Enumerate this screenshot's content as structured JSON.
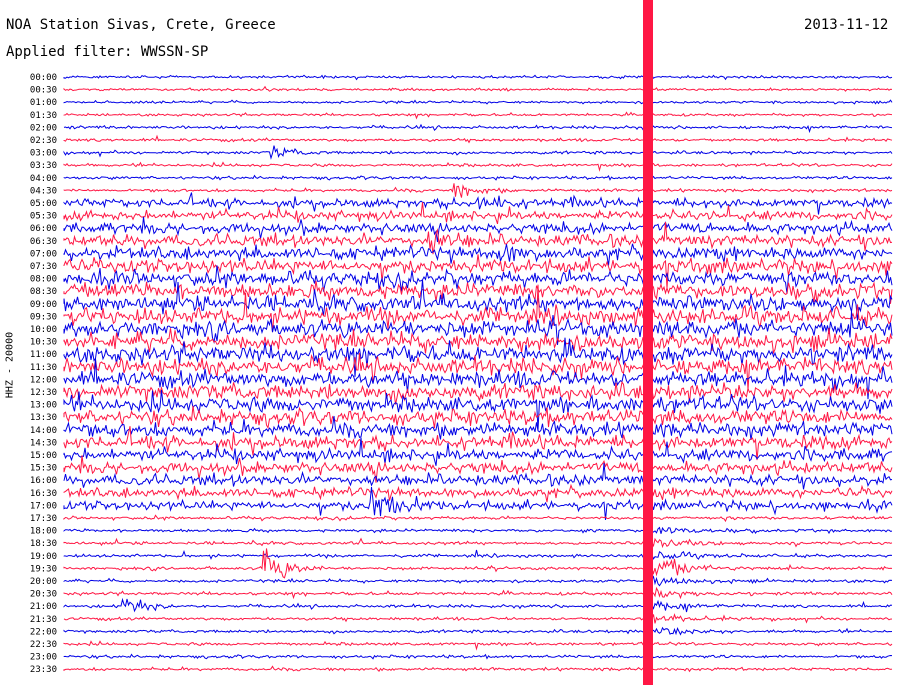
{
  "header": {
    "title": "NOA Station Sivas, Crete, Greece",
    "date": "2013-11-12",
    "filter": "Applied filter: WWSSN-SP"
  },
  "chart_data": {
    "type": "line",
    "title": "NOA Station Sivas, Crete, Greece",
    "xlabel": "",
    "ylabel": "HHZ - 20000",
    "colors": {
      "even_rows": "#0000e6",
      "odd_rows": "#ff1744"
    },
    "row_labels": [
      "00:00",
      "00:30",
      "01:00",
      "01:30",
      "02:00",
      "02:30",
      "03:00",
      "03:30",
      "04:00",
      "04:30",
      "05:00",
      "05:30",
      "06:00",
      "06:30",
      "07:00",
      "07:30",
      "08:00",
      "08:30",
      "09:00",
      "09:30",
      "10:00",
      "10:30",
      "11:00",
      "11:30",
      "12:00",
      "12:30",
      "13:00",
      "13:30",
      "14:00",
      "14:30",
      "15:00",
      "15:30",
      "16:00",
      "16:30",
      "17:00",
      "17:30",
      "18:00",
      "18:30",
      "19:00",
      "19:30",
      "20:00",
      "20:30",
      "21:00",
      "21:30",
      "22:00",
      "22:30",
      "23:00",
      "23:30"
    ],
    "series": [
      {
        "row": "03:00",
        "event_at_fraction": 0.25,
        "amplitude": 0.8
      },
      {
        "row": "04:30",
        "event_at_fraction": 0.47,
        "amplitude": 1.2
      },
      {
        "row": "05:00",
        "event_at_fraction": 0.5,
        "amplitude": 1.2
      },
      {
        "row": "06:30",
        "event_at_fraction": 0.44,
        "amplitude": 1.5
      },
      {
        "row": "07:00",
        "event_at_fraction": 0.52,
        "amplitude": 1.5
      },
      {
        "row": "17:00",
        "event_at_fraction": 0.37,
        "amplitude": 3
      },
      {
        "row": "19:30",
        "event_at_fraction": 0.24,
        "amplitude": 3
      },
      {
        "row": "21:00",
        "event_at_fraction": 0.07,
        "amplitude": 1.5
      },
      {
        "row": "00:00",
        "event_at_fraction": 0.7,
        "amplitude": 30
      }
    ]
  }
}
